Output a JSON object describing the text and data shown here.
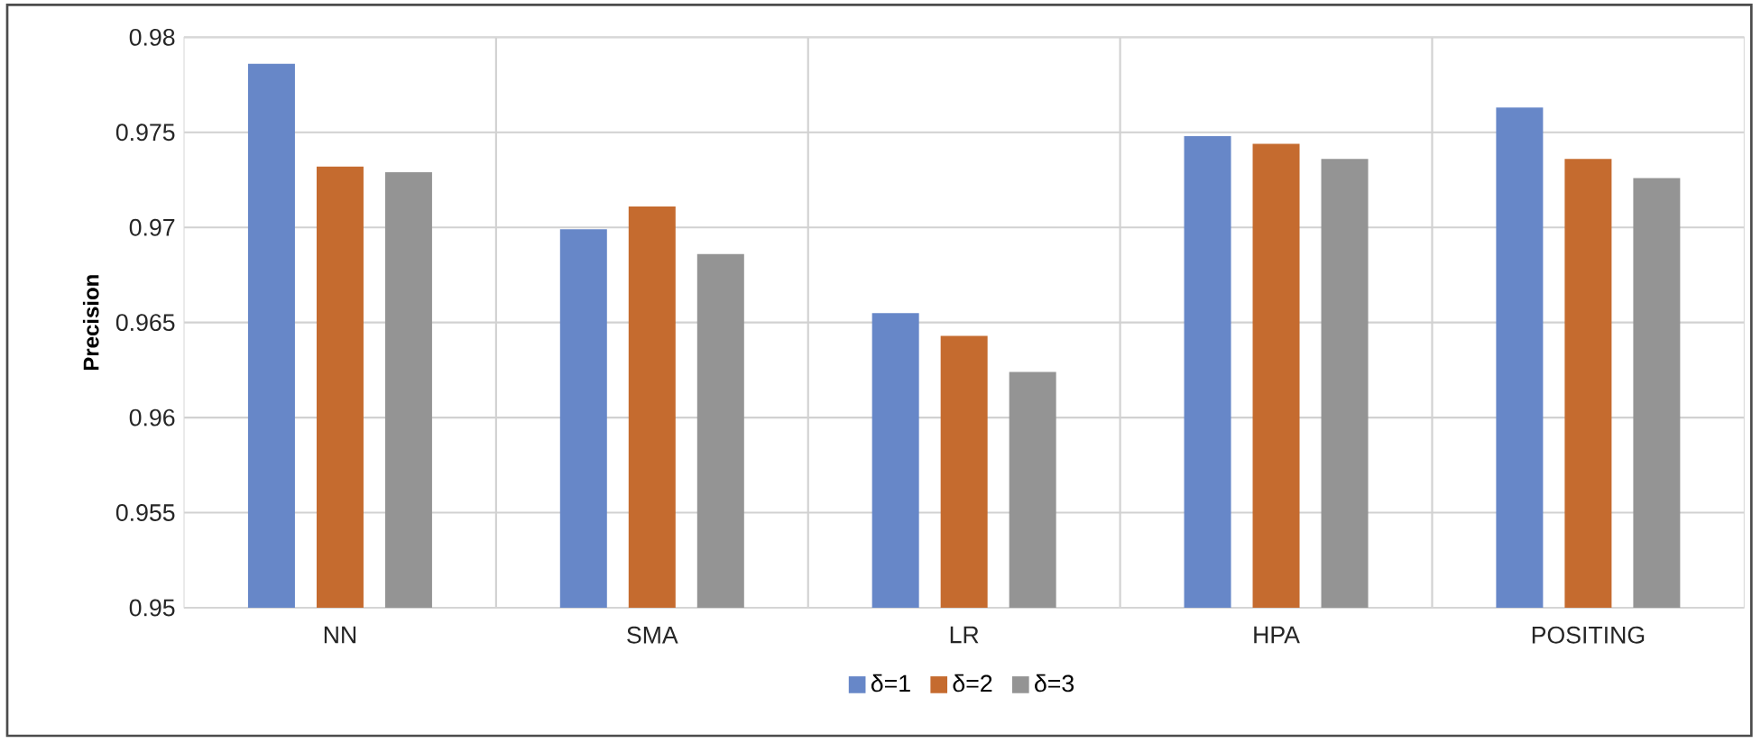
{
  "chart_data": {
    "type": "bar",
    "ylabel": "Precision",
    "categories": [
      "NN",
      "SMA",
      "LR",
      "HPA",
      "POSITING"
    ],
    "series": [
      {
        "name": "δ=1",
        "color": "#6787c8",
        "values": [
          0.9786,
          0.9699,
          0.9655,
          0.9748,
          0.9763
        ]
      },
      {
        "name": "δ=2",
        "color": "#c56b2f",
        "values": [
          0.9732,
          0.9711,
          0.9643,
          0.9744,
          0.9736
        ]
      },
      {
        "name": "δ=3",
        "color": "#949494",
        "values": [
          0.9729,
          0.9686,
          0.9624,
          0.9736,
          0.9726
        ]
      }
    ],
    "ylim": [
      0.95,
      0.98
    ],
    "yticks": [
      0.95,
      0.955,
      0.96,
      0.965,
      0.97,
      0.975,
      0.98
    ],
    "grid": true,
    "legend": "bottom"
  }
}
